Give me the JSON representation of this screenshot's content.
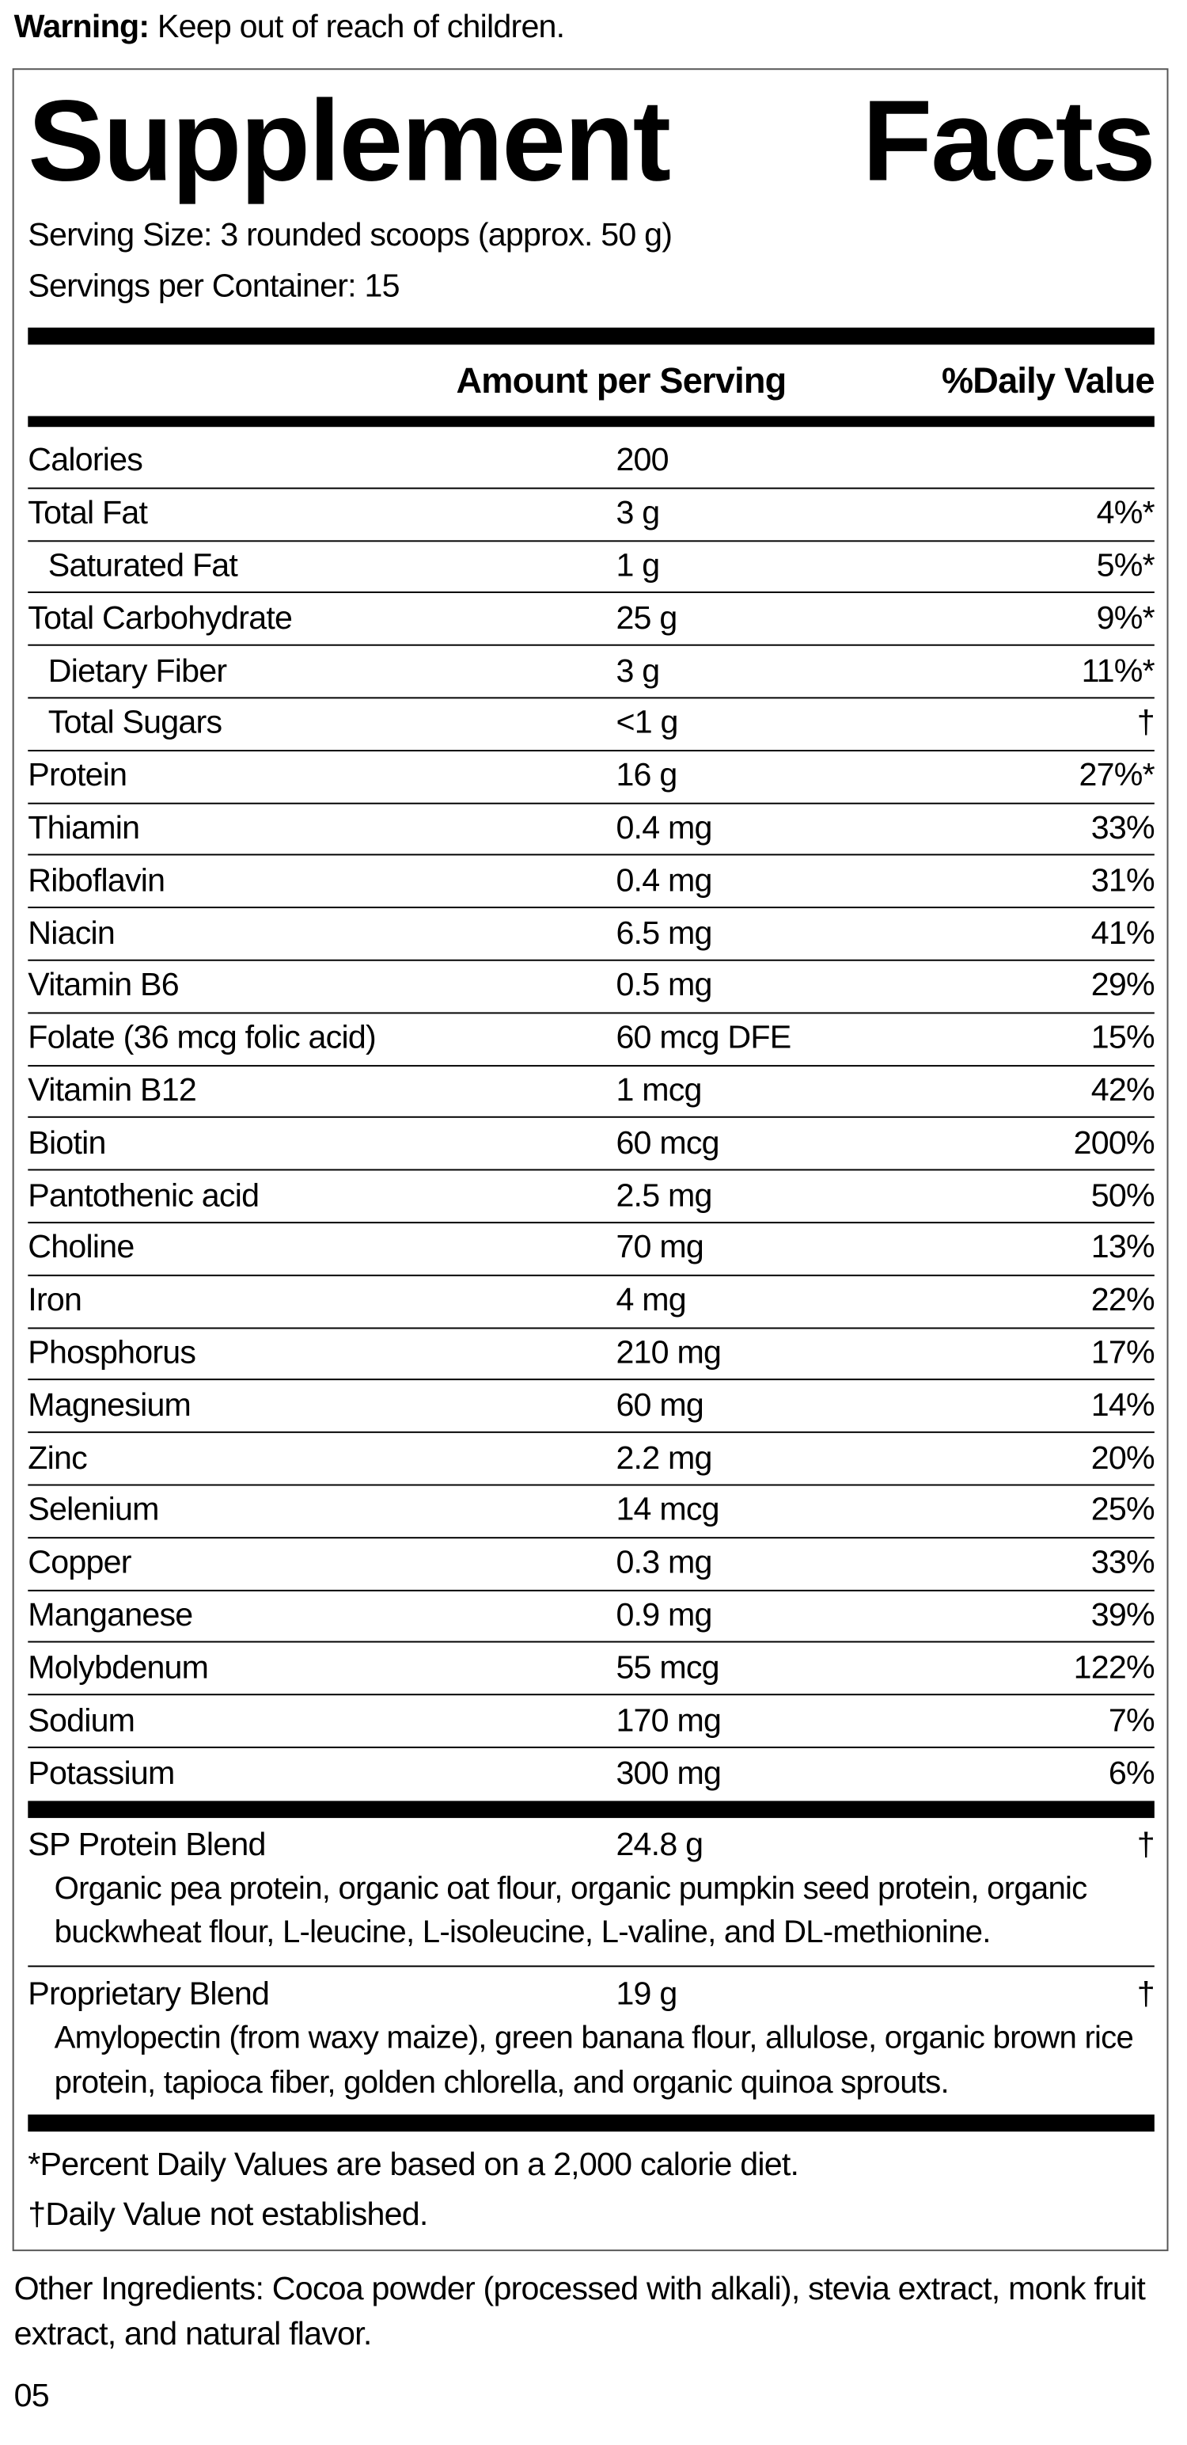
{
  "warning": {
    "label": "Warning:",
    "text": "Keep out of reach of children."
  },
  "title": "Supplement Facts",
  "serving_size": "Serving Size: 3 rounded scoops (approx. 50 g)",
  "servings_per_container": "Servings per Container: 15",
  "header": {
    "amount": "Amount per Serving",
    "daily_value": "%Daily Value"
  },
  "rows": [
    {
      "name": "Calories",
      "amount": "200"
    },
    {
      "name": "Total Fat",
      "amount": "3 g",
      "daily_value": "4%*"
    },
    {
      "name": "Saturated Fat",
      "amount": "1 g",
      "daily_value": "5%*",
      "indent": true
    },
    {
      "name": "Total Carbohydrate",
      "amount": "25 g",
      "daily_value": "9%*"
    },
    {
      "name": "Dietary Fiber",
      "amount": "3 g",
      "daily_value": "11%*",
      "indent": true
    },
    {
      "name": "Total Sugars",
      "amount": "<1 g",
      "daily_value": "†",
      "indent": true
    },
    {
      "name": "Protein",
      "amount": "16 g",
      "daily_value": "27%*"
    },
    {
      "name": "Thiamin",
      "amount": "0.4 mg",
      "daily_value": "33%"
    },
    {
      "name": "Riboflavin",
      "amount": "0.4 mg",
      "daily_value": "31%"
    },
    {
      "name": "Niacin",
      "amount": "6.5 mg",
      "daily_value": "41%"
    },
    {
      "name": "Vitamin B6",
      "amount": "0.5 mg",
      "daily_value": "29%"
    },
    {
      "name": "Folate (36 mcg folic acid)",
      "amount": "60 mcg DFE",
      "daily_value": "15%"
    },
    {
      "name": "Vitamin B12",
      "amount": "1 mcg",
      "daily_value": "42%"
    },
    {
      "name": "Biotin",
      "amount": "60 mcg",
      "daily_value": "200%"
    },
    {
      "name": "Pantothenic acid",
      "amount": "2.5 mg",
      "daily_value": "50%"
    },
    {
      "name": "Choline",
      "amount": "70 mg",
      "daily_value": "13%"
    },
    {
      "name": "Iron",
      "amount": "4 mg",
      "daily_value": "22%"
    },
    {
      "name": "Phosphorus",
      "amount": "210 mg",
      "daily_value": "17%"
    },
    {
      "name": "Magnesium",
      "amount": "60 mg",
      "daily_value": "14%"
    },
    {
      "name": "Zinc",
      "amount": "2.2 mg",
      "daily_value": "20%"
    },
    {
      "name": "Selenium",
      "amount": "14 mcg",
      "daily_value": "25%"
    },
    {
      "name": "Copper",
      "amount": "0.3 mg",
      "daily_value": "33%"
    },
    {
      "name": "Manganese",
      "amount": "0.9 mg",
      "daily_value": "39%"
    },
    {
      "name": "Molybdenum",
      "amount": "55 mcg",
      "daily_value": "122%"
    },
    {
      "name": "Sodium",
      "amount": "170 mg",
      "daily_value": "7%"
    },
    {
      "name": "Potassium",
      "amount": "300 mg",
      "daily_value": "6%"
    }
  ],
  "blends": [
    {
      "name": "SP Protein Blend",
      "amount": "24.8 g",
      "daily_value": "†",
      "ingredients": "Organic pea protein, organic oat flour, organic pumpkin seed protein, organic buckwheat flour, L-leucine, L-isoleucine, L-valine, and DL-methionine."
    },
    {
      "name": "Proprietary Blend",
      "amount": "19 g",
      "daily_value": "†",
      "ingredients": "Amylopectin (from waxy maize), green banana flour, allulose, organic brown rice protein, tapioca fiber, golden chlorella, and organic quinoa sprouts."
    }
  ],
  "footnotes": [
    "*Percent Daily Values are based on a 2,000 calorie diet.",
    "†Daily Value not established."
  ],
  "other_ingredients": "Other Ingredients: Cocoa powder (processed with alkali), stevia extract, monk fruit extract, and natural flavor.",
  "code": "05"
}
